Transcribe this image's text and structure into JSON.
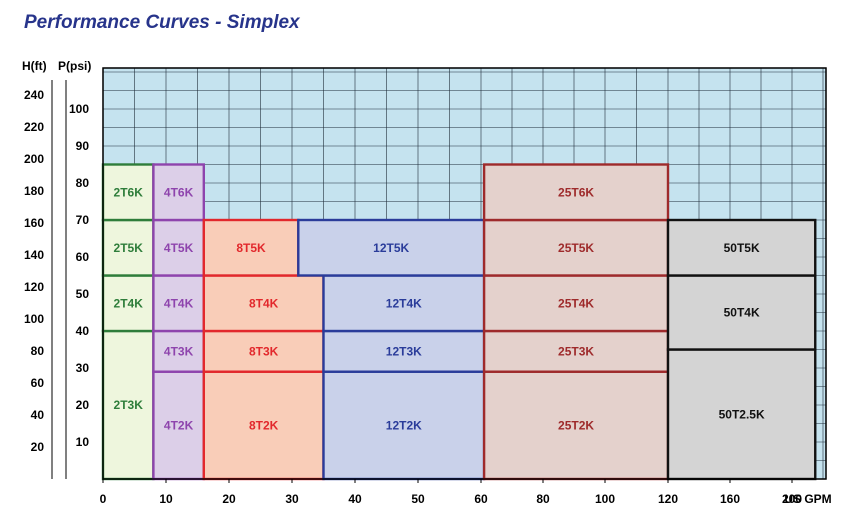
{
  "header": {
    "title": "Performance Curves - Simplex"
  },
  "chart_data": {
    "type": "area",
    "title": "Performance Curves - Simplex",
    "axes": {
      "h_label": "H(ft)",
      "p_label": "P(psi)",
      "x_unit": "US GPM",
      "h_ticks": [
        "20",
        "40",
        "60",
        "80",
        "100",
        "120",
        "140",
        "160",
        "180",
        "200",
        "220",
        "240"
      ],
      "p_ticks": [
        "10",
        "20",
        "30",
        "40",
        "50",
        "60",
        "70",
        "80",
        "90",
        "100"
      ],
      "x_ticks": [
        "0",
        "10",
        "20",
        "30",
        "40",
        "50",
        "60",
        "80",
        "100",
        "120",
        "160",
        "200"
      ],
      "plot_background": "#c5e3ef",
      "grid": true
    },
    "series": [
      {
        "name": "2T",
        "color": "#2e7d3a",
        "fill": "#eef6dd",
        "x_max_gpm": "8",
        "zones": [
          {
            "label": "2T3K",
            "psi_max": "40"
          },
          {
            "label": "2T4K",
            "psi_max": "55"
          },
          {
            "label": "2T5K",
            "psi_max": "70"
          },
          {
            "label": "2T6K",
            "psi_max": "85"
          }
        ]
      },
      {
        "name": "4T",
        "color": "#8e44ad",
        "fill": "#dccfe8",
        "x_max_gpm": "16",
        "zones": [
          {
            "label": "4T2K",
            "psi_max": "29"
          },
          {
            "label": "4T3K",
            "psi_max": "40"
          },
          {
            "label": "4T4K",
            "psi_max": "55"
          },
          {
            "label": "4T5K",
            "psi_max": "70"
          },
          {
            "label": "4T6K",
            "psi_max": "85"
          }
        ]
      },
      {
        "name": "8T",
        "color": "#e2282c",
        "fill": "#f9cdb8",
        "zones": [
          {
            "label": "8T2K",
            "psi_max": "29",
            "x_max_gpm": "35"
          },
          {
            "label": "8T3K",
            "psi_max": "40",
            "x_max_gpm": "35"
          },
          {
            "label": "8T4K",
            "psi_max": "55",
            "x_max_gpm": "35"
          },
          {
            "label": "8T5K",
            "psi_max": "70",
            "x_max_gpm": "31"
          }
        ]
      },
      {
        "name": "12T",
        "color": "#2a3c9a",
        "fill": "#c9d1ea",
        "x_max_gpm": "61",
        "zones": [
          {
            "label": "12T2K",
            "psi_max": "29"
          },
          {
            "label": "12T3K",
            "psi_max": "40"
          },
          {
            "label": "12T4K",
            "psi_max": "55"
          },
          {
            "label": "12T5K",
            "psi_max": "70"
          }
        ]
      },
      {
        "name": "25T",
        "color": "#9e2a2b",
        "fill": "#e4d1cc",
        "x_max_gpm": "120",
        "zones": [
          {
            "label": "25T2K",
            "psi_max": "29"
          },
          {
            "label": "25T3K",
            "psi_max": "40"
          },
          {
            "label": "25T4K",
            "psi_max": "55"
          },
          {
            "label": "25T5K",
            "psi_max": "70"
          },
          {
            "label": "25T6K",
            "psi_max": "85"
          }
        ]
      },
      {
        "name": "50T",
        "color": "#111111",
        "fill": "#d4d4d4",
        "x_max_gpm": "215",
        "zones": [
          {
            "label": "50T2.5K",
            "psi_max": "35"
          },
          {
            "label": "50T4K",
            "psi_max": "55"
          },
          {
            "label": "50T5K",
            "psi_max": "70"
          }
        ]
      }
    ]
  }
}
